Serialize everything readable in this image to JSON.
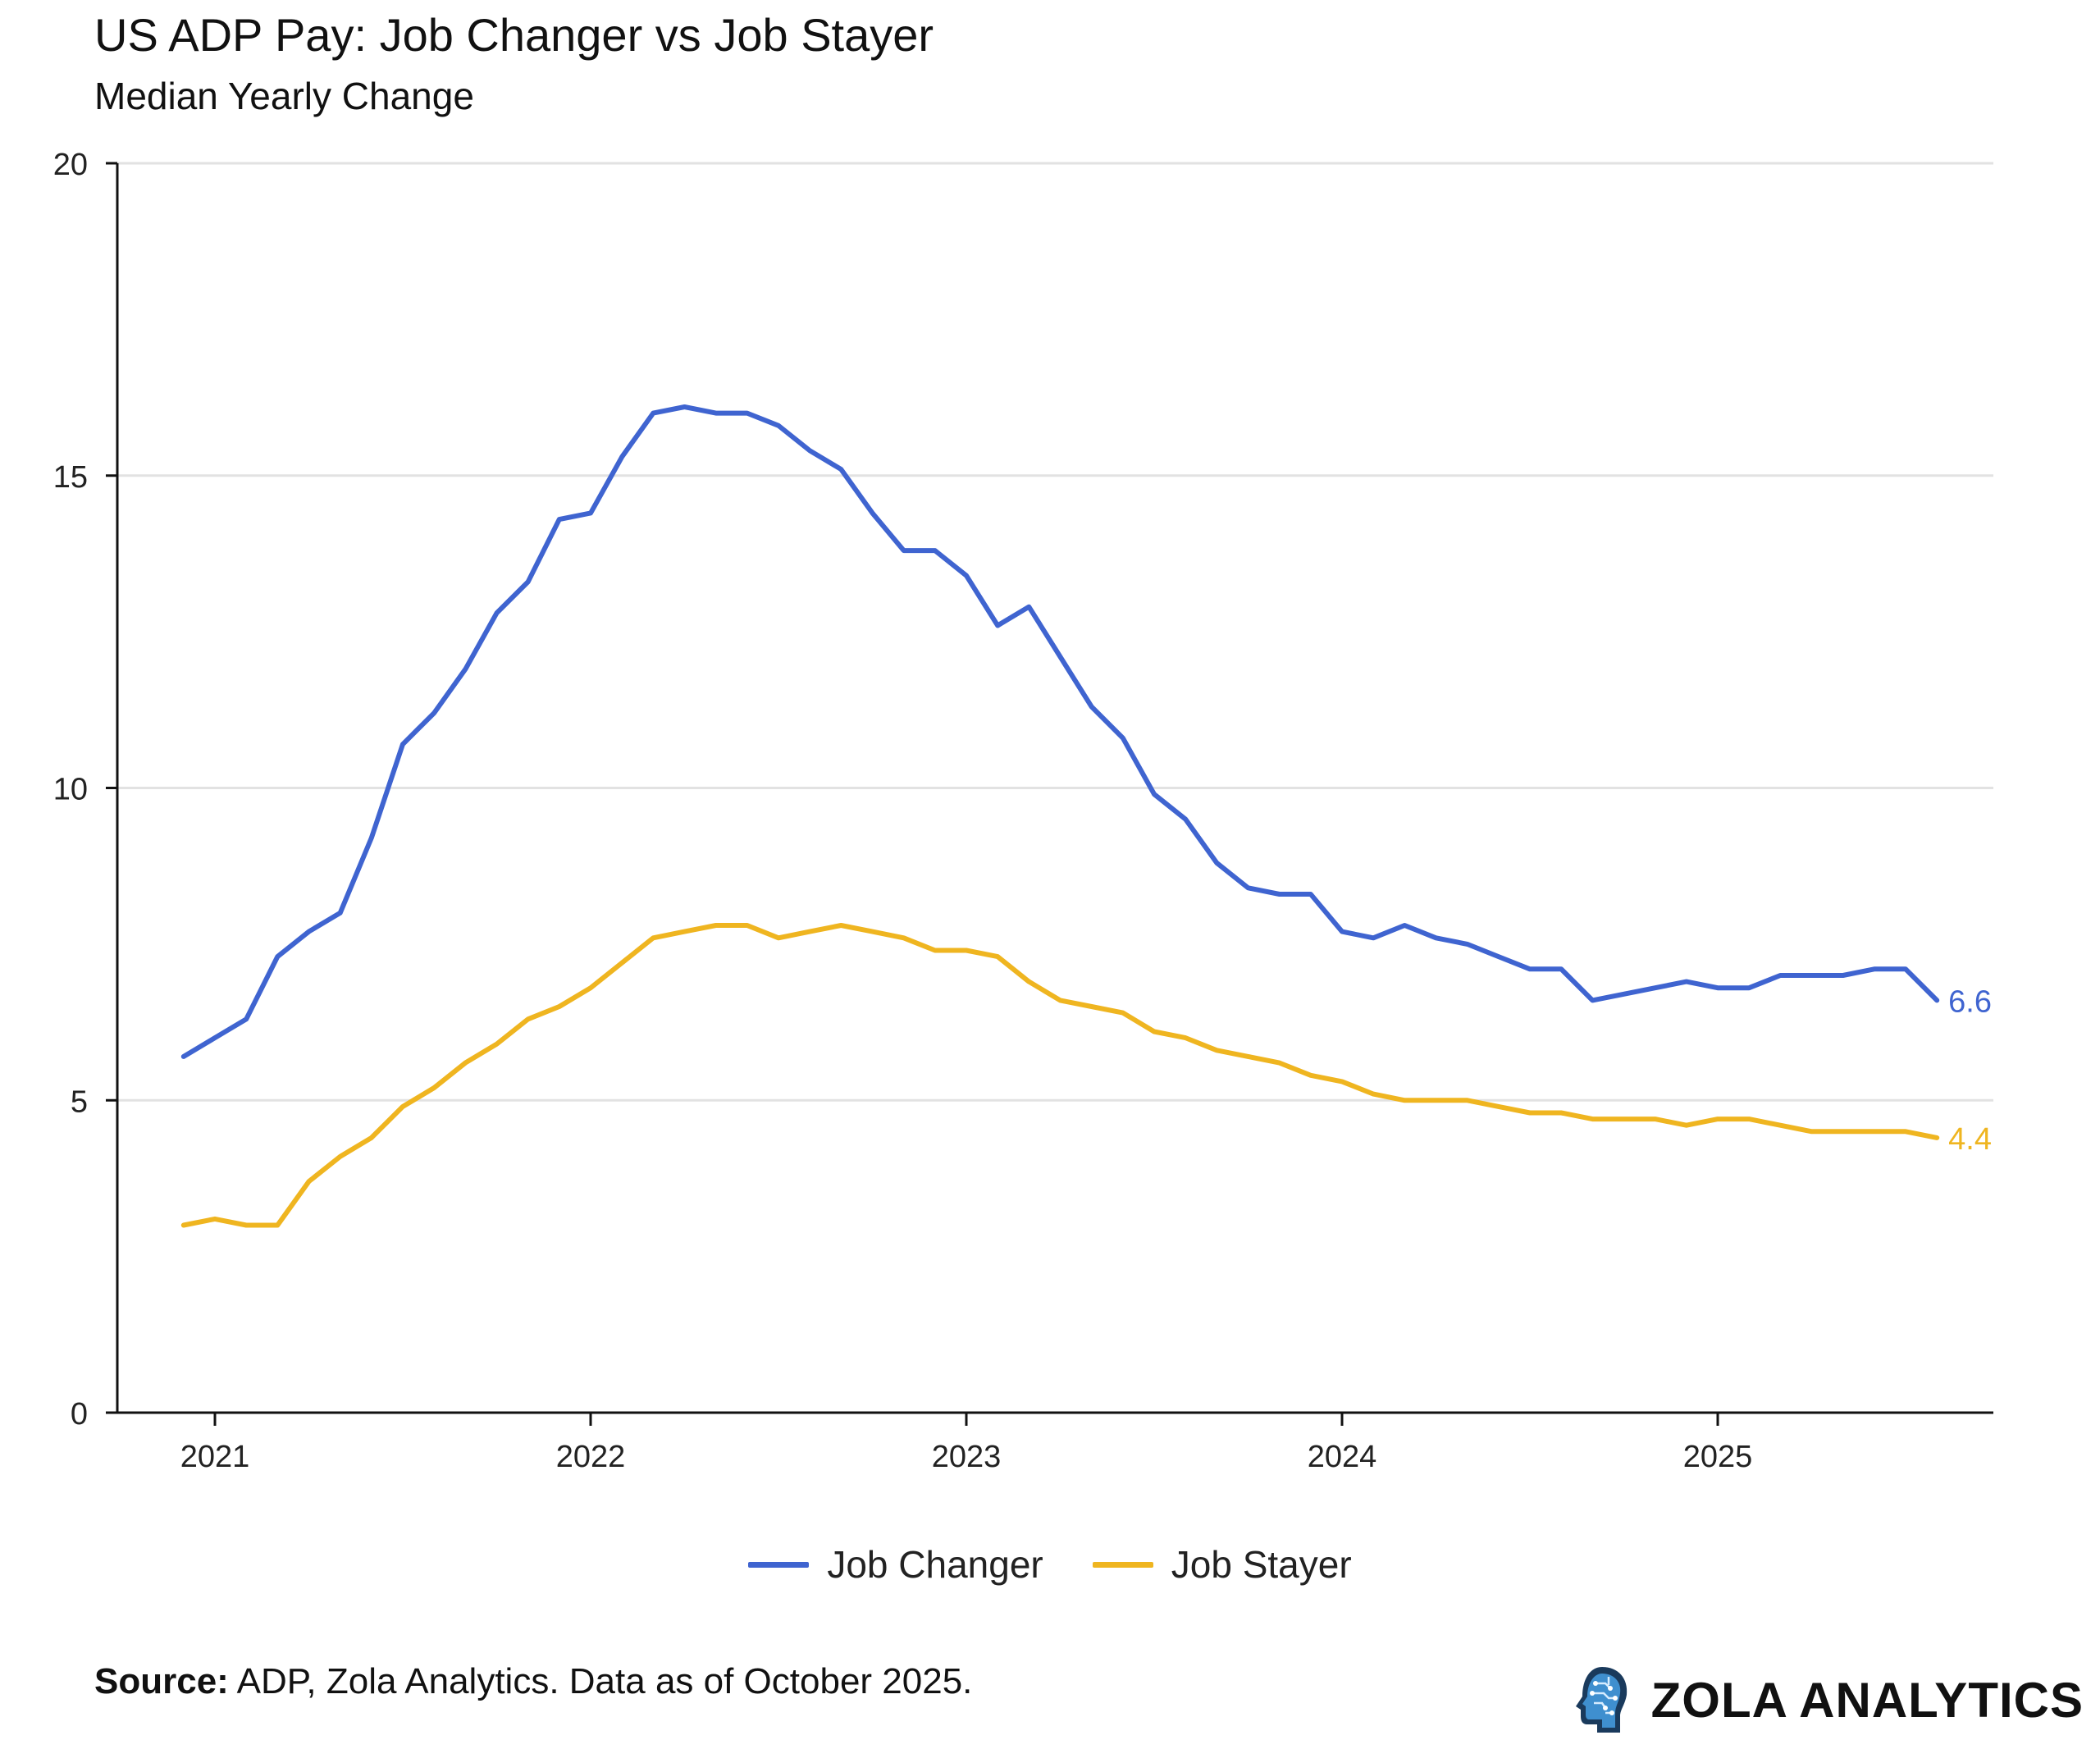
{
  "colors": {
    "job_changer": "#3f64d0",
    "job_stayer": "#efb520",
    "axis": "#111111",
    "grid": "#e2e2e2"
  },
  "chart_data": {
    "type": "line",
    "title": "US ADP Pay: Job Changer vs Job Stayer",
    "subtitle": "Median Yearly Change",
    "xlabel": "",
    "ylabel": "",
    "ylim": [
      0,
      20
    ],
    "yticks": [
      0,
      5,
      10,
      15,
      20
    ],
    "xticks": [
      "2021",
      "2022",
      "2023",
      "2024",
      "2025"
    ],
    "grid": true,
    "legend_position": "bottom-center",
    "x": [
      "2020-12",
      "2021-01",
      "2021-02",
      "2021-03",
      "2021-04",
      "2021-05",
      "2021-06",
      "2021-07",
      "2021-08",
      "2021-09",
      "2021-10",
      "2021-11",
      "2021-12",
      "2022-01",
      "2022-02",
      "2022-03",
      "2022-04",
      "2022-05",
      "2022-06",
      "2022-07",
      "2022-08",
      "2022-09",
      "2022-10",
      "2022-11",
      "2022-12",
      "2023-01",
      "2023-02",
      "2023-03",
      "2023-04",
      "2023-05",
      "2023-06",
      "2023-07",
      "2023-08",
      "2023-09",
      "2023-10",
      "2023-11",
      "2023-12",
      "2024-01",
      "2024-02",
      "2024-03",
      "2024-04",
      "2024-05",
      "2024-06",
      "2024-07",
      "2024-08",
      "2024-09",
      "2024-10",
      "2024-11",
      "2024-12",
      "2025-01",
      "2025-02",
      "2025-03",
      "2025-04",
      "2025-05",
      "2025-06",
      "2025-07",
      "2025-08"
    ],
    "series": [
      {
        "name": "Job Changer",
        "end_label": "6.6",
        "values": [
          5.7,
          6.0,
          6.3,
          7.3,
          7.7,
          8.0,
          9.2,
          10.7,
          11.2,
          11.9,
          12.8,
          13.3,
          14.3,
          14.4,
          15.3,
          16.0,
          16.1,
          16.0,
          16.0,
          15.8,
          15.4,
          15.1,
          14.4,
          13.8,
          13.8,
          13.4,
          12.6,
          12.9,
          12.1,
          11.3,
          10.8,
          9.9,
          9.5,
          8.8,
          8.4,
          8.3,
          8.3,
          7.7,
          7.6,
          7.8,
          7.6,
          7.5,
          7.3,
          7.1,
          7.1,
          6.6,
          6.7,
          6.8,
          6.9,
          6.8,
          6.8,
          7.0,
          7.0,
          7.0,
          7.1,
          7.1,
          6.6
        ]
      },
      {
        "name": "Job Stayer",
        "end_label": "4.4",
        "values": [
          3.0,
          3.1,
          3.0,
          3.0,
          3.7,
          4.1,
          4.4,
          4.9,
          5.2,
          5.6,
          5.9,
          6.3,
          6.5,
          6.8,
          7.2,
          7.6,
          7.7,
          7.8,
          7.8,
          7.6,
          7.7,
          7.8,
          7.7,
          7.6,
          7.4,
          7.4,
          7.3,
          6.9,
          6.6,
          6.5,
          6.4,
          6.1,
          6.0,
          5.8,
          5.7,
          5.6,
          5.4,
          5.3,
          5.1,
          5.0,
          5.0,
          5.0,
          4.9,
          4.8,
          4.8,
          4.7,
          4.7,
          4.7,
          4.6,
          4.7,
          4.7,
          4.6,
          4.5,
          4.5,
          4.5,
          4.5,
          4.4
        ]
      }
    ]
  },
  "footer": {
    "source_label": "Source:",
    "source_text": " ADP, Zola Analytics. Data as of October 2025."
  },
  "brand": {
    "name": "ZOLA ANALYTICS",
    "logo_icon": "head-circuit-icon"
  }
}
